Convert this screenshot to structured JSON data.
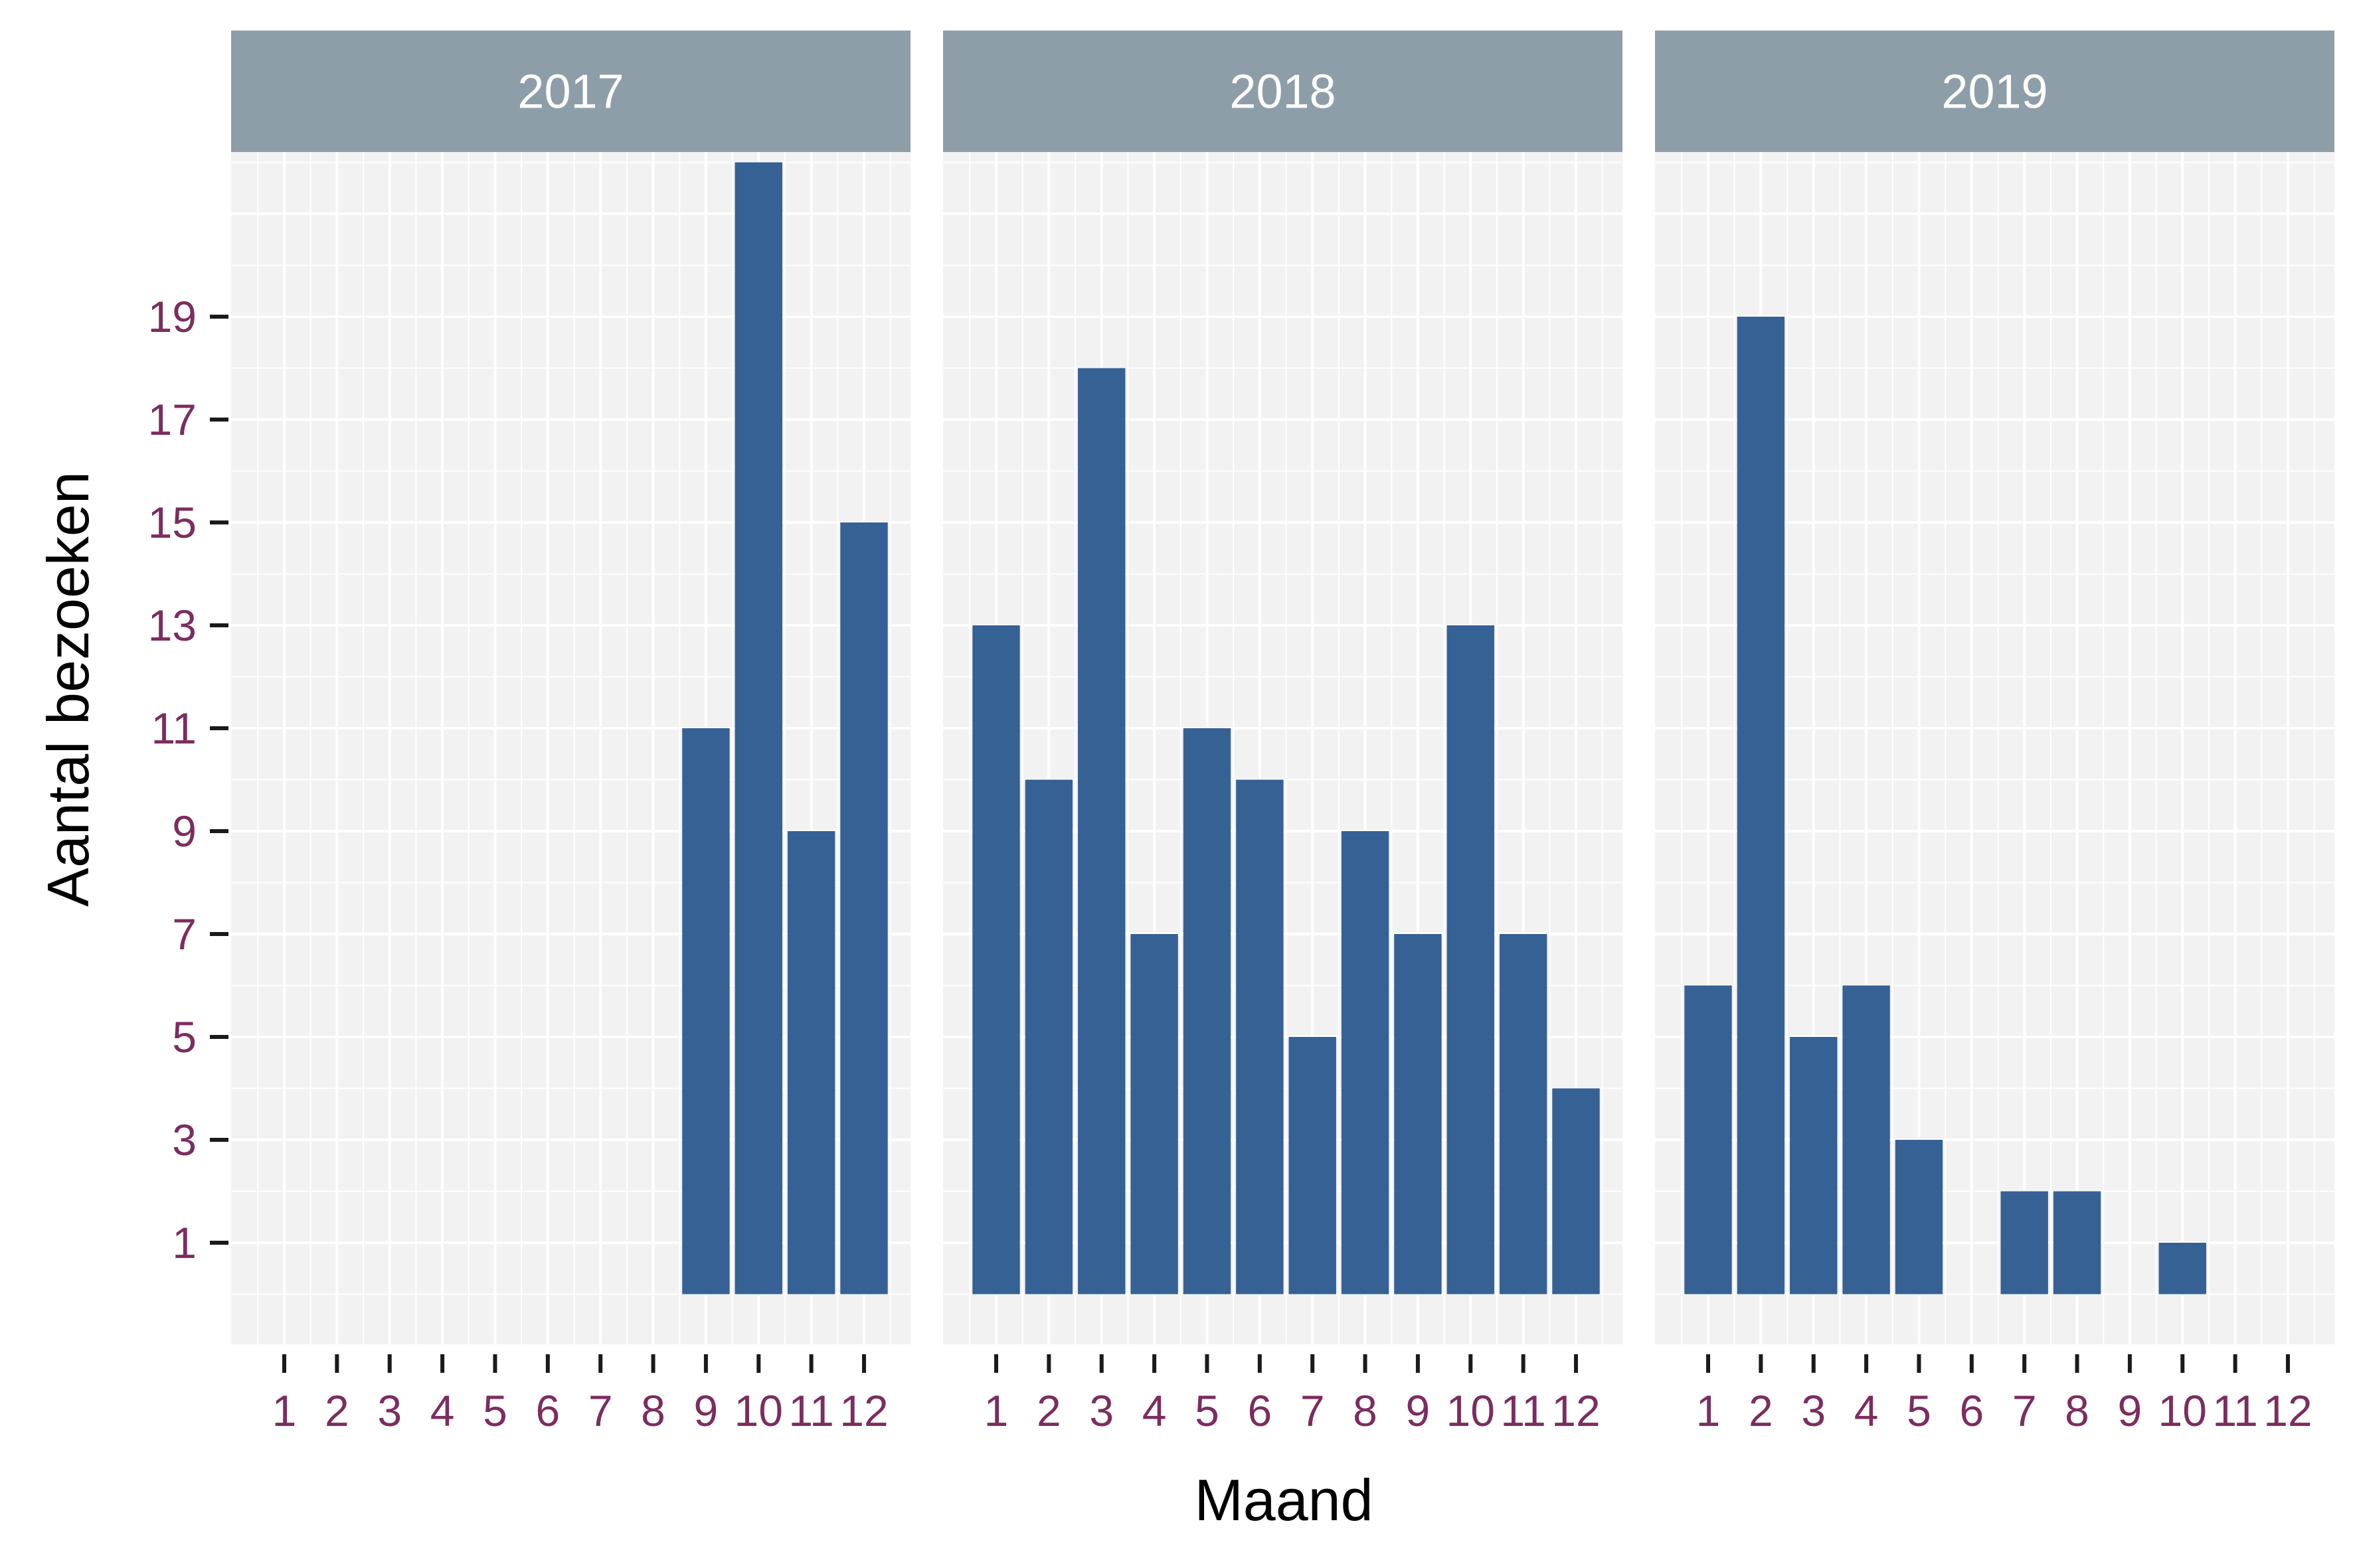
{
  "chart_data": {
    "type": "bar",
    "xlabel": "Maand",
    "ylabel": "Aantal bezoeken",
    "categories": [
      "1",
      "2",
      "3",
      "4",
      "5",
      "6",
      "7",
      "8",
      "9",
      "10",
      "11",
      "12"
    ],
    "yticks": [
      1,
      3,
      5,
      7,
      9,
      11,
      13,
      15,
      17,
      19
    ],
    "ylim": [
      -1,
      22.2
    ],
    "grid": true,
    "panels": [
      {
        "label": "2017",
        "values": [
          null,
          null,
          null,
          null,
          null,
          null,
          null,
          null,
          11,
          22,
          9,
          15
        ]
      },
      {
        "label": "2018",
        "values": [
          13,
          10,
          18,
          7,
          11,
          10,
          5,
          9,
          7,
          13,
          7,
          4
        ]
      },
      {
        "label": "2019",
        "values": [
          6,
          19,
          5,
          6,
          3,
          null,
          2,
          2,
          null,
          1,
          null,
          null
        ]
      }
    ]
  },
  "colors": {
    "bar": "#366195",
    "panel_background": "#f2f2f2",
    "grid": "#ffffff",
    "strip": "#8e9ea9",
    "tick_label": "#7c2d5f",
    "tick_mark": "#1a1a1a"
  }
}
